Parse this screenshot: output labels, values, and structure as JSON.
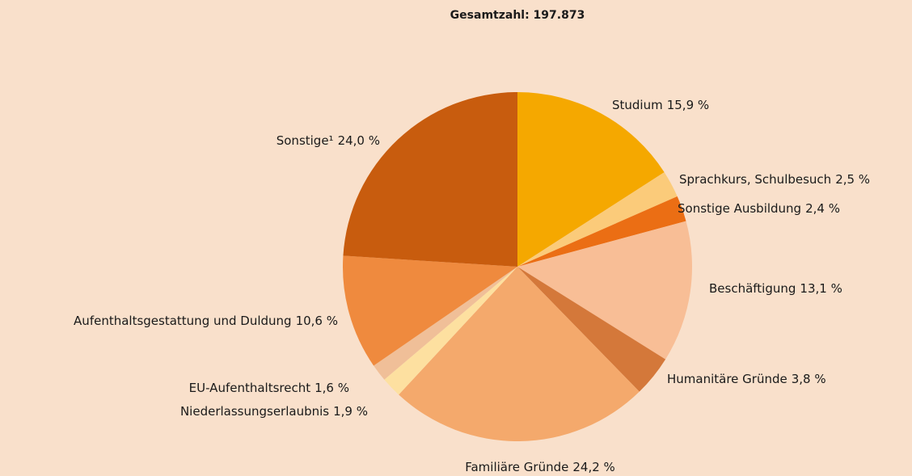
{
  "chart_data": {
    "type": "pie",
    "title": "Gesamtzahl: 197.873",
    "categories": [
      "Studium",
      "Sprachkurs, Schulbesuch",
      "Sonstige Ausbildung",
      "Beschäftigung",
      "Humanitäre Gründe",
      "Familiäre Gründe",
      "Niederlassungserlaubnis",
      "EU-Aufenthaltsrecht",
      "Aufenthaltsgestattung und Duldung",
      "Sonstige¹"
    ],
    "values": [
      15.9,
      2.5,
      2.4,
      13.1,
      3.8,
      24.2,
      1.9,
      1.6,
      10.6,
      24.0
    ],
    "value_labels": [
      "15,9 %",
      "2,5 %",
      "2,4 %",
      "13,1 %",
      "3,8 %",
      "24,2 %",
      "1,9 %",
      "1,6 %",
      "10,6 %",
      "24,0 %"
    ],
    "colors": [
      "#f5a800",
      "#fbcb7a",
      "#eb6e14",
      "#f8be96",
      "#d4783a",
      "#f4a96c",
      "#fde0a0",
      "#f0bf98",
      "#ef8a3e",
      "#c85c0e"
    ]
  }
}
